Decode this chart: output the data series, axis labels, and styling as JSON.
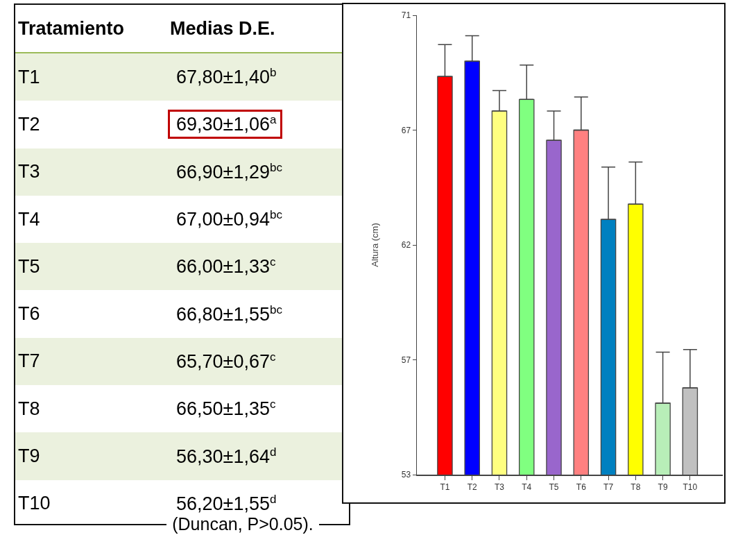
{
  "chart_data": [
    {
      "type": "other",
      "annotations": [
        "Tratamiento",
        "Medias D.E.",
        "(Duncan, P>0.05)."
      ],
      "categories": [
        "T1",
        "T2",
        "T3",
        "T4",
        "T5",
        "T6",
        "T7",
        "T8",
        "T9",
        "T10"
      ],
      "value_labels": [
        "67,80±1,40$^{b}$",
        "69,30±1,06$^{a}$",
        "66,90±1,29$^{bc}$",
        "67,00±0,94$^{bc}$",
        "66,00±1,33$^{c}$",
        "66,80±1,55$^{bc}$",
        "65,70±0,67$^{c}$",
        "66,50±1,35$^{c}$",
        "56,30±1,64$^{d}$",
        "56,20±1,55$^{d}$"
      ]
    },
    {
      "type": "bar",
      "ylabel": "Altura (cm)",
      "categories": [
        "T1",
        "T2",
        "T3",
        "T4",
        "T5",
        "T6",
        "T7",
        "T8",
        "T9",
        "T10"
      ],
      "values": [
        68.6,
        69.2,
        67.25,
        67.7,
        66.1,
        66.5,
        63.0,
        63.6,
        55.8,
        56.4
      ],
      "errors": [
        [
          68.6,
          69.85
        ],
        [
          69.2,
          70.2
        ],
        [
          67.25,
          68.05
        ],
        [
          67.7,
          69.05
        ],
        [
          66.1,
          67.25
        ],
        [
          66.5,
          67.8
        ],
        [
          63.0,
          65.05
        ],
        [
          63.6,
          65.25
        ],
        [
          55.8,
          57.8
        ],
        [
          56.4,
          57.9
        ]
      ],
      "colors": [
        "#ff0000",
        "#0000ff",
        "#ffff80",
        "#80ff80",
        "#9966cc",
        "#ff8080",
        "#0080c0",
        "#ffff00",
        "#b8eeb8",
        "#c0c0c0"
      ],
      "ylim": [
        53,
        71
      ],
      "yticks": [
        53,
        {
          "value": 57.5,
          "label": "57"
        },
        62,
        {
          "value": 66.5,
          "label": "67"
        },
        71
      ]
    }
  ]
}
